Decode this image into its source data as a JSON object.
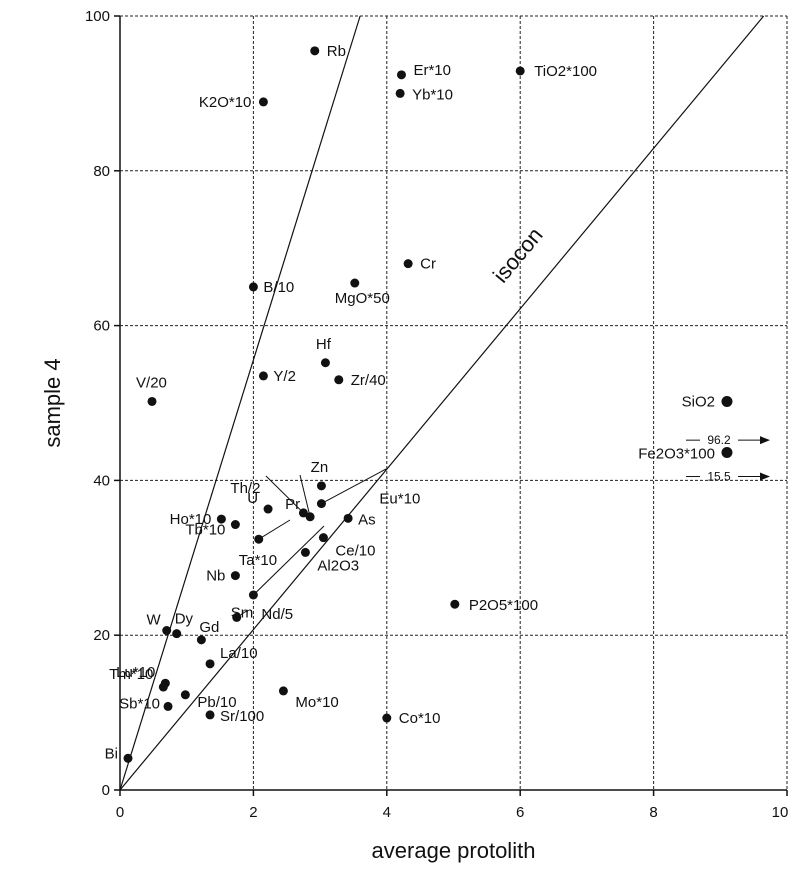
{
  "chart_data": {
    "type": "scatter",
    "xlabel": "average protolith",
    "ylabel": "sample 4",
    "xlim": [
      0,
      10
    ],
    "ylim": [
      0,
      100
    ],
    "xticks": [
      "0",
      "2",
      "4",
      "6",
      "8",
      "10"
    ],
    "yticks": [
      "0",
      "20",
      "40",
      "60",
      "80",
      "100"
    ],
    "grid": true,
    "reference_line_label": "isocon",
    "offscale_labels": [
      "96.2",
      "15.5"
    ],
    "points": [
      {
        "label": "Rb",
        "x": 2.92,
        "y": 95.5
      },
      {
        "label": "K2O*10",
        "x": 2.15,
        "y": 88.9
      },
      {
        "label": "Er*10",
        "x": 4.22,
        "y": 92.4
      },
      {
        "label": "Yb*10",
        "x": 4.2,
        "y": 90.0
      },
      {
        "label": "TiO2*100",
        "x": 6.0,
        "y": 92.9
      },
      {
        "label": "Cr",
        "x": 4.32,
        "y": 68.0
      },
      {
        "label": "B/10",
        "x": 2.0,
        "y": 65.0
      },
      {
        "label": "MgO*50",
        "x": 3.52,
        "y": 65.5
      },
      {
        "label": "Hf",
        "x": 3.08,
        "y": 55.2
      },
      {
        "label": "Y/2",
        "x": 2.15,
        "y": 53.5
      },
      {
        "label": "Zr/40",
        "x": 3.28,
        "y": 53.0
      },
      {
        "label": "V/20",
        "x": 0.48,
        "y": 50.2
      },
      {
        "label": "SiO2",
        "x": 9.1,
        "y": 50.2
      },
      {
        "label": "Fe2O3*100",
        "x": 9.1,
        "y": 43.6
      },
      {
        "label": "Zn",
        "x": 3.02,
        "y": 39.3
      },
      {
        "label": "Eu*10",
        "x": 3.02,
        "y": 37.0
      },
      {
        "label": "Th/2",
        "x": 2.75,
        "y": 35.8
      },
      {
        "label": "Pr",
        "x": 2.85,
        "y": 35.3
      },
      {
        "label": "U",
        "x": 2.22,
        "y": 36.3
      },
      {
        "label": "As",
        "x": 3.42,
        "y": 35.1
      },
      {
        "label": "Ho*10",
        "x": 1.52,
        "y": 35.0
      },
      {
        "label": "Tb*10",
        "x": 1.73,
        "y": 34.3
      },
      {
        "label": "Ta*10",
        "x": 2.08,
        "y": 32.4
      },
      {
        "label": "Ce/10",
        "x": 3.05,
        "y": 32.6
      },
      {
        "label": "Al2O3",
        "x": 2.78,
        "y": 30.7
      },
      {
        "label": "Nb",
        "x": 1.73,
        "y": 27.7
      },
      {
        "label": "Nd/5",
        "x": 2.0,
        "y": 25.2
      },
      {
        "label": "P2O5*100",
        "x": 5.02,
        "y": 24.0
      },
      {
        "label": "Sm",
        "x": 1.75,
        "y": 22.3
      },
      {
        "label": "W",
        "x": 0.7,
        "y": 20.6
      },
      {
        "label": "Dy",
        "x": 0.85,
        "y": 20.2
      },
      {
        "label": "Gd",
        "x": 1.22,
        "y": 19.4
      },
      {
        "label": "La/10",
        "x": 1.35,
        "y": 16.3
      },
      {
        "label": "Lu*10",
        "x": 0.68,
        "y": 13.8
      },
      {
        "label": "Tm*10",
        "x": 0.65,
        "y": 13.3
      },
      {
        "label": "Pb/10",
        "x": 0.98,
        "y": 12.3
      },
      {
        "label": "Mo*10",
        "x": 2.45,
        "y": 12.8
      },
      {
        "label": "Sb*10",
        "x": 0.72,
        "y": 10.8
      },
      {
        "label": "Sr/100",
        "x": 1.35,
        "y": 9.7
      },
      {
        "label": "Co*10",
        "x": 4.0,
        "y": 9.3
      },
      {
        "label": "Bi",
        "x": 0.12,
        "y": 4.1
      }
    ],
    "lines": [
      {
        "name": "isocon",
        "from": [
          0,
          0
        ],
        "to": [
          9.65,
          100
        ]
      },
      {
        "name": "steep",
        "from": [
          0,
          0
        ],
        "to": [
          3.6,
          100
        ]
      }
    ],
    "offscale_points": [
      {
        "of": "SiO2",
        "value": "96.2"
      },
      {
        "of": "Fe2O3*100",
        "value": "15.5"
      }
    ]
  }
}
